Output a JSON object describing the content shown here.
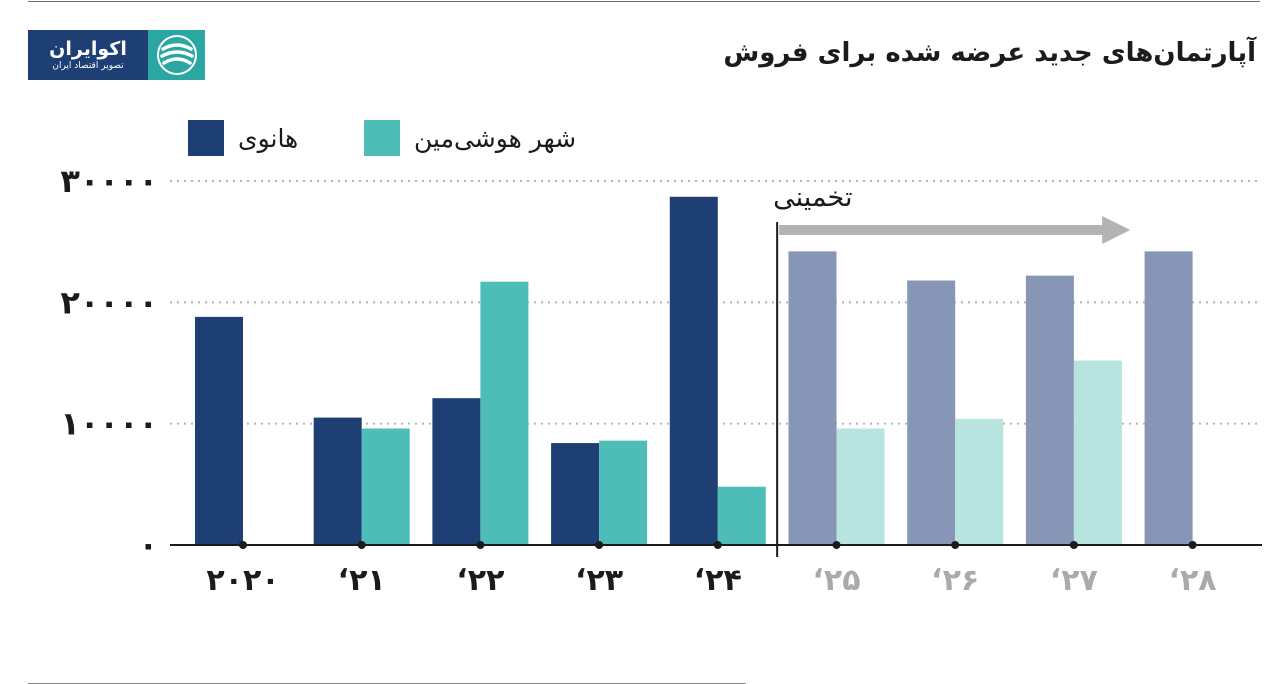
{
  "brand": {
    "name": "اکوایران",
    "tagline": "تصویر اقتصاد ایران",
    "colors": {
      "navy": "#1d3f73",
      "teal": "#2aa7a3"
    }
  },
  "title": "آپارتمان‌های جدید عرضه شده برای فروش",
  "chart_data": {
    "type": "bar",
    "title": "آپارتمان‌های جدید عرضه شده برای فروش",
    "categories": [
      "۲۰۲۰",
      "‘۲۱",
      "‘۲۲",
      "‘۲۳",
      "‘۲۴",
      "‘۲۵",
      "‘۲۶",
      "‘۲۷",
      "‘۲۸"
    ],
    "series": [
      {
        "name": "هانوی",
        "color": "#1d3f73",
        "forecast_color": "#8796b6",
        "values": [
          18800,
          10500,
          12100,
          8400,
          28700,
          24200,
          21800,
          22200,
          24200
        ]
      },
      {
        "name": "شهر هوشی‌مین",
        "color": "#4fbdb7",
        "forecast_color": "#b8e4e0",
        "values": [
          null,
          9600,
          21700,
          8600,
          4800,
          9600,
          10400,
          15200,
          null
        ]
      }
    ],
    "forecast_from_index": 5,
    "forecast_label": "تخمینی",
    "yticks": [
      {
        "value": 0,
        "label": "۰"
      },
      {
        "value": 10000,
        "label": "۱۰۰۰۰"
      },
      {
        "value": 20000,
        "label": "۲۰۰۰۰"
      },
      {
        "value": 30000,
        "label": "۳۰۰۰۰"
      }
    ],
    "ylim": [
      0,
      30000
    ],
    "grid": true,
    "legend_position": "top-left",
    "colors": {
      "tick_text": "#1b1b1b",
      "forecast_tick_text": "#aaaaaa",
      "grid": "#b5b5b5",
      "axis": "#1b1b1b",
      "arrow": "#b3b3b3"
    }
  }
}
